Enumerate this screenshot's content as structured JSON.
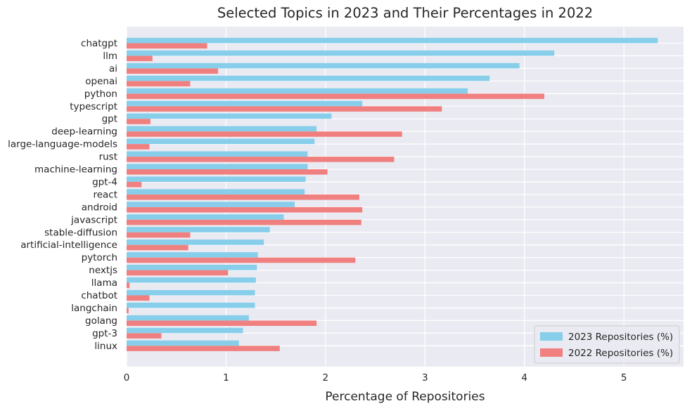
{
  "chart_data": {
    "type": "bar",
    "orientation": "horizontal",
    "title": "Selected Topics in 2023 and Their Percentages in 2022",
    "xlabel": "Percentage of Repositories",
    "ylabel": "",
    "xlim": [
      0,
      5.6
    ],
    "xticks": [
      0,
      1,
      2,
      3,
      4,
      5
    ],
    "grid": true,
    "legend_position": "bottom-right",
    "categories": [
      "chatgpt",
      "llm",
      "ai",
      "openai",
      "python",
      "typescript",
      "gpt",
      "deep-learning",
      "large-language-models",
      "rust",
      "machine-learning",
      "gpt-4",
      "react",
      "android",
      "javascript",
      "stable-diffusion",
      "artificial-intelligence",
      "pytorch",
      "nextjs",
      "llama",
      "chatbot",
      "langchain",
      "golang",
      "gpt-3",
      "linux"
    ],
    "series": [
      {
        "name": "2023 Repositories (%)",
        "color": "#87ceeb",
        "values": [
          5.34,
          4.3,
          3.95,
          3.65,
          3.43,
          2.37,
          2.06,
          1.91,
          1.89,
          1.82,
          1.82,
          1.8,
          1.79,
          1.69,
          1.58,
          1.44,
          1.38,
          1.32,
          1.31,
          1.3,
          1.29,
          1.29,
          1.23,
          1.17,
          1.13
        ]
      },
      {
        "name": "2022 Repositories (%)",
        "color": "#f08080",
        "values": [
          0.81,
          0.26,
          0.92,
          0.64,
          4.2,
          3.17,
          0.24,
          2.77,
          0.23,
          2.69,
          2.02,
          0.15,
          2.34,
          2.37,
          2.36,
          0.64,
          0.62,
          2.3,
          1.02,
          0.03,
          0.23,
          0.02,
          1.91,
          0.35,
          1.54
        ]
      }
    ]
  }
}
